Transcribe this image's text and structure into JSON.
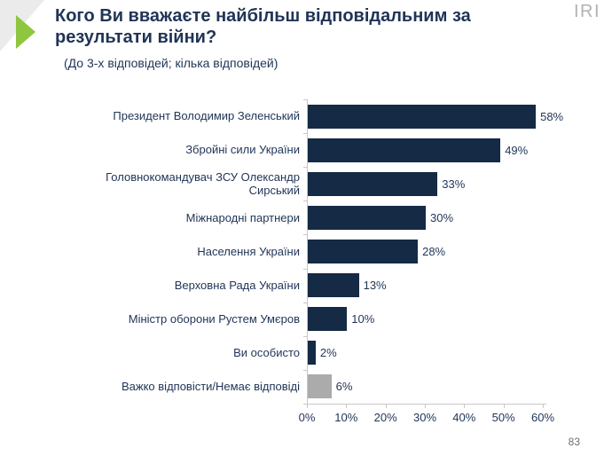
{
  "page": {
    "logo": "IRI",
    "page_number": "83"
  },
  "colors": {
    "bar_primary": "#152A45",
    "bar_neutral": "#ABABAB",
    "text_navy": "#1F3456",
    "accent_green": "#8EC640",
    "axis_gray": "#C8C8C8",
    "logo_gray": "#B2B2B2"
  },
  "chart_data": {
    "type": "bar",
    "orientation": "horizontal",
    "title": "Кого Ви вважаєте найбільш відповідальним за результати війни?",
    "subtitle": "(До 3-х відповідей; кілька відповідей)",
    "categories": [
      "Президент Володимир Зеленський",
      "Збройні сили України",
      "Головнокомандувач ЗСУ Олександр Сирський",
      "Міжнародні партнери",
      "Населення України",
      "Верховна Рада України",
      "Міністр оборони Рустем Умєров",
      "Ви особисто",
      "Важко відповісти/Немає відповіді"
    ],
    "values": [
      58,
      49,
      33,
      30,
      28,
      13,
      10,
      2,
      6
    ],
    "value_labels": [
      "58%",
      "49%",
      "33%",
      "30%",
      "28%",
      "13%",
      "10%",
      "2%",
      "6%"
    ],
    "bar_styles": [
      "primary",
      "primary",
      "primary",
      "primary",
      "primary",
      "primary",
      "primary",
      "primary",
      "neutral"
    ],
    "x_ticks": [
      "0%",
      "10%",
      "20%",
      "30%",
      "40%",
      "50%",
      "60%"
    ],
    "x_tick_values": [
      0,
      10,
      20,
      30,
      40,
      50,
      60
    ],
    "xlim": [
      0,
      60
    ],
    "grid": false,
    "legend": false
  }
}
